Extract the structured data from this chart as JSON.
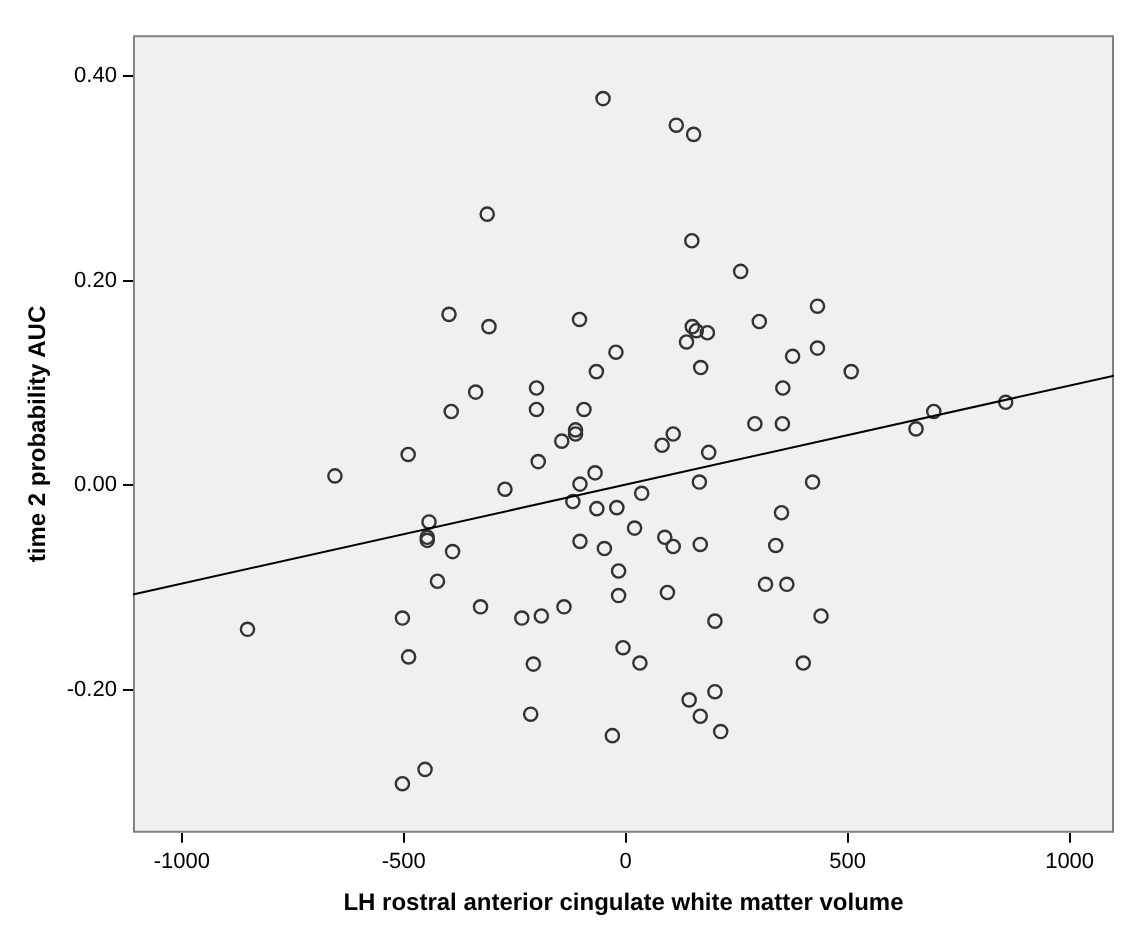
{
  "chart_data": {
    "type": "scatter",
    "xlabel": "LH rostral anterior cingulate white matter volume",
    "ylabel": "time 2 probability AUC",
    "xlim": [
      -1110,
      1100
    ],
    "ylim": [
      -0.34,
      0.44
    ],
    "xticks": [
      -1000,
      -500,
      0,
      500,
      1000
    ],
    "yticks": [
      {
        "value": -0.2,
        "label": "-0.20"
      },
      {
        "value": 0,
        "label": "0.00"
      },
      {
        "value": 0.2,
        "label": "0.20"
      },
      {
        "value": 0.4,
        "label": "0.40"
      }
    ],
    "grid": false,
    "legend": false,
    "marker": "circle",
    "series": [
      {
        "type": "scatter",
        "color": "#333333",
        "x": [
          -51,
          -312,
          -398,
          -308,
          -104,
          -22,
          -66,
          -338,
          -201,
          -393,
          -201,
          -94,
          -113,
          -113,
          -144,
          114,
          153,
          149,
          259,
          432,
          301,
          150,
          159,
          184,
          137,
          432,
          376,
          169,
          508,
          354,
          291,
          353,
          107,
          82,
          856,
          694,
          654,
          -490,
          -655,
          -197,
          -69,
          -272,
          -103,
          -119,
          -65,
          -20,
          -443,
          -447,
          -447,
          -390,
          -103,
          -48,
          -16,
          -16,
          -424,
          -503,
          -327,
          -234,
          -190,
          -139,
          -852,
          -489,
          -6,
          -208,
          -214,
          -30,
          -452,
          -503,
          187,
          36,
          166,
          421,
          20,
          88,
          107,
          168,
          351,
          338,
          94,
          315,
          363,
          201,
          440,
          32,
          400,
          201,
          143,
          168,
          214
        ],
        "values": [
          0.378,
          0.265,
          0.167,
          0.155,
          0.162,
          0.13,
          0.111,
          0.091,
          0.095,
          0.072,
          0.074,
          0.074,
          0.054,
          0.05,
          0.043,
          0.352,
          0.343,
          0.239,
          0.209,
          0.175,
          0.16,
          0.155,
          0.151,
          0.149,
          0.14,
          0.134,
          0.126,
          0.115,
          0.111,
          0.095,
          0.06,
          0.06,
          0.05,
          0.039,
          0.081,
          0.072,
          0.055,
          0.03,
          0.009,
          0.023,
          0.012,
          -0.004,
          0.001,
          -0.016,
          -0.023,
          -0.022,
          -0.036,
          -0.051,
          -0.054,
          -0.065,
          -0.055,
          -0.062,
          -0.084,
          -0.108,
          -0.094,
          -0.13,
          -0.119,
          -0.13,
          -0.128,
          -0.119,
          -0.141,
          -0.168,
          -0.159,
          -0.175,
          -0.224,
          -0.245,
          -0.278,
          -0.292,
          0.032,
          -0.008,
          0.003,
          0.003,
          -0.042,
          -0.051,
          -0.06,
          -0.058,
          -0.027,
          -0.059,
          -0.105,
          -0.097,
          -0.097,
          -0.133,
          -0.128,
          -0.174,
          -0.174,
          -0.202,
          -0.21,
          -0.226,
          -0.241
        ]
      },
      {
        "type": "line",
        "color": "#000000",
        "x": [
          -1110,
          1100
        ],
        "values": [
          -0.107,
          0.107
        ],
        "marker": "none"
      }
    ]
  }
}
